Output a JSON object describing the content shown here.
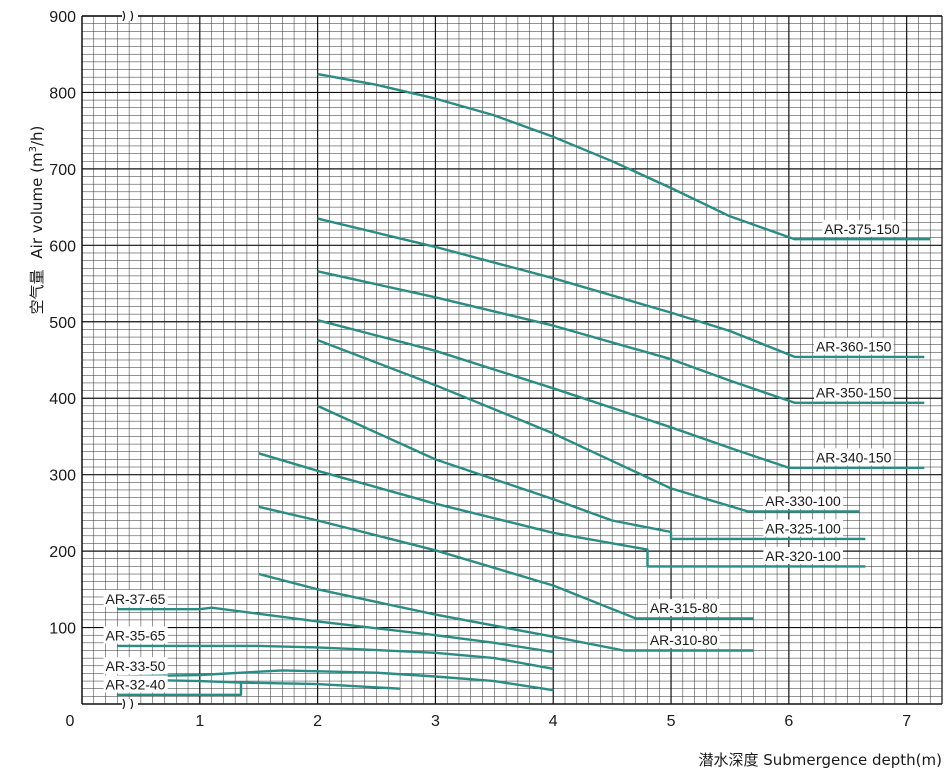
{
  "chart_data": {
    "type": "line",
    "xlabel": "潜水深度 Submergence depth(m)",
    "ylabel_cn": "空气量",
    "ylabel_en": "Air volume (m",
    "ylabel_sup": "3",
    "ylabel_end": "/h)",
    "xlim": [
      0,
      7.3
    ],
    "ylim": [
      0,
      900
    ],
    "x_ticks": [
      0,
      1,
      2,
      3,
      4,
      5,
      6,
      7
    ],
    "y_ticks": [
      100,
      200,
      300,
      400,
      500,
      600,
      700,
      800,
      900
    ],
    "axis_break": true,
    "grid": true,
    "line_color": "#2a8c82",
    "series": [
      {
        "name": "AR-375-150",
        "points": [
          [
            2.0,
            824
          ],
          [
            2.5,
            810
          ],
          [
            3.0,
            792
          ],
          [
            3.5,
            770
          ],
          [
            4.0,
            742
          ],
          [
            4.5,
            710
          ],
          [
            5.0,
            675
          ],
          [
            5.5,
            638
          ],
          [
            6.05,
            608
          ],
          [
            7.2,
            608
          ]
        ]
      },
      {
        "name": "AR-360-150",
        "points": [
          [
            2.0,
            635
          ],
          [
            3.0,
            598
          ],
          [
            4.0,
            557
          ],
          [
            5.0,
            512
          ],
          [
            5.5,
            488
          ],
          [
            6.05,
            454
          ],
          [
            7.15,
            454
          ]
        ]
      },
      {
        "name": "AR-350-150",
        "points": [
          [
            2.0,
            566
          ],
          [
            3.0,
            532
          ],
          [
            4.0,
            495
          ],
          [
            5.0,
            451
          ],
          [
            5.5,
            423
          ],
          [
            6.05,
            394
          ],
          [
            7.15,
            394
          ]
        ]
      },
      {
        "name": "AR-340-150",
        "points": [
          [
            2.0,
            502
          ],
          [
            3.0,
            462
          ],
          [
            4.0,
            413
          ],
          [
            5.0,
            362
          ],
          [
            5.5,
            335
          ],
          [
            6.0,
            309
          ],
          [
            7.15,
            309
          ]
        ]
      },
      {
        "name": "AR-330-100",
        "points": [
          [
            2.0,
            476
          ],
          [
            3.0,
            417
          ],
          [
            4.0,
            354
          ],
          [
            4.5,
            318
          ],
          [
            5.0,
            282
          ],
          [
            5.65,
            252
          ],
          [
            6.6,
            252
          ]
        ]
      },
      {
        "name": "AR-325-100",
        "points": [
          [
            2.0,
            390
          ],
          [
            3.0,
            320
          ],
          [
            4.0,
            268
          ],
          [
            4.5,
            240
          ],
          [
            5.0,
            225
          ],
          [
            5.0,
            216
          ],
          [
            6.65,
            216
          ]
        ]
      },
      {
        "name": "AR-320-100",
        "points": [
          [
            1.5,
            328
          ],
          [
            2.0,
            305
          ],
          [
            3.0,
            262
          ],
          [
            4.0,
            224
          ],
          [
            4.8,
            202
          ],
          [
            4.8,
            180
          ],
          [
            6.65,
            180
          ]
        ]
      },
      {
        "name": "AR-315-80",
        "points": [
          [
            1.5,
            258
          ],
          [
            2.0,
            240
          ],
          [
            3.0,
            201
          ],
          [
            4.0,
            155
          ],
          [
            4.7,
            112
          ],
          [
            5.7,
            112
          ]
        ]
      },
      {
        "name": "AR-310-80",
        "points": [
          [
            1.5,
            170
          ],
          [
            2.0,
            150
          ],
          [
            3.0,
            117
          ],
          [
            4.0,
            88
          ],
          [
            4.6,
            70
          ],
          [
            5.7,
            70
          ]
        ]
      },
      {
        "name": "AR-37-65",
        "points": [
          [
            0.3,
            124
          ],
          [
            1.0,
            124
          ],
          [
            1.1,
            126
          ],
          [
            2.0,
            108
          ],
          [
            3.0,
            90
          ],
          [
            3.5,
            80
          ],
          [
            4.0,
            68
          ]
        ]
      },
      {
        "name": "AR-35-65",
        "points": [
          [
            0.3,
            76
          ],
          [
            1.5,
            76
          ],
          [
            2.0,
            74
          ],
          [
            3.0,
            67
          ],
          [
            3.5,
            60
          ],
          [
            4.0,
            46
          ]
        ]
      },
      {
        "name": "AR-33-50",
        "points": [
          [
            0.3,
            36
          ],
          [
            1.0,
            38
          ],
          [
            1.7,
            44
          ],
          [
            2.5,
            41
          ],
          [
            3.0,
            36
          ],
          [
            3.5,
            30
          ],
          [
            4.0,
            18
          ]
        ]
      },
      {
        "name": "AR-32-40",
        "points": [
          [
            0.3,
            32
          ],
          [
            1.0,
            30
          ],
          [
            1.35,
            28
          ],
          [
            2.0,
            26
          ],
          [
            2.7,
            20
          ]
        ]
      },
      {
        "name": "",
        "points": [
          [
            0.3,
            12
          ],
          [
            1.35,
            12
          ],
          [
            1.35,
            30
          ]
        ]
      }
    ],
    "series_labels": [
      {
        "text": "AR-375-150",
        "x": 6.3,
        "y": 615
      },
      {
        "text": "AR-360-150",
        "x": 6.23,
        "y": 461
      },
      {
        "text": "AR-350-150",
        "x": 6.23,
        "y": 401
      },
      {
        "text": "AR-340-150",
        "x": 6.23,
        "y": 316
      },
      {
        "text": "AR-330-100",
        "x": 5.8,
        "y": 259
      },
      {
        "text": "AR-325-100",
        "x": 5.8,
        "y": 223
      },
      {
        "text": "AR-320-100",
        "x": 5.8,
        "y": 187
      },
      {
        "text": "AR-315-80",
        "x": 4.82,
        "y": 119
      },
      {
        "text": "AR-310-80",
        "x": 4.82,
        "y": 77
      },
      {
        "text": "AR-37-65",
        "x": 0.2,
        "y": 131
      },
      {
        "text": "AR-35-65",
        "x": 0.2,
        "y": 83
      },
      {
        "text": "AR-33-50",
        "x": 0.2,
        "y": 43
      },
      {
        "text": "AR-32-40",
        "x": 0.2,
        "y": 19
      }
    ]
  }
}
